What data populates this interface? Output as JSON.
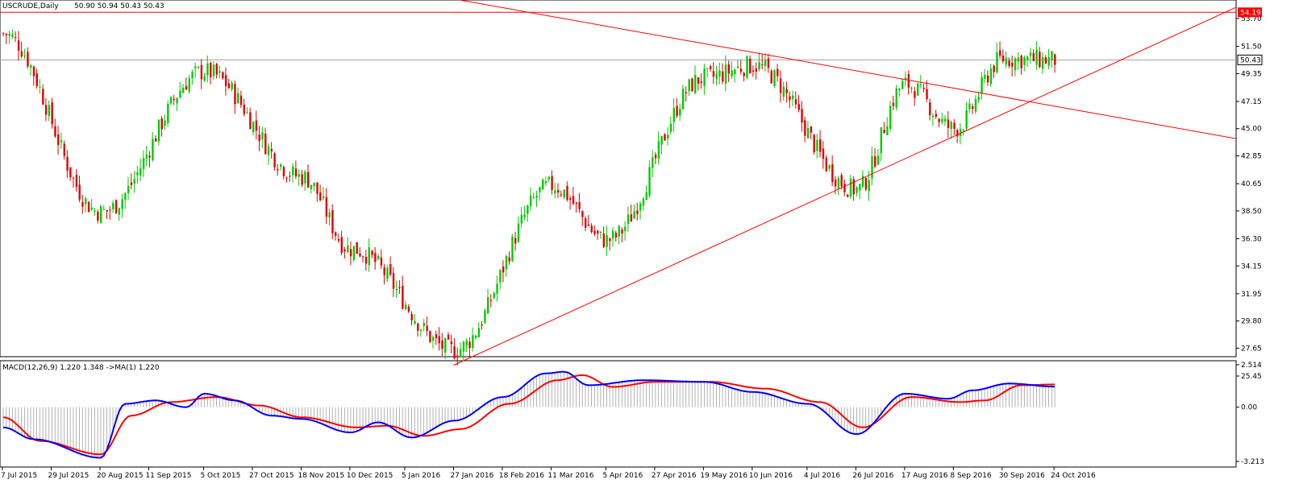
{
  "chart_data": {
    "type": "candlestick",
    "header": {
      "symbol": "USCRUDE,Daily",
      "ohlc": "50.90 50.94 50.43 50.43"
    },
    "price_axis": {
      "ylim": [
        25.45,
        54.99
      ],
      "ticks": [
        "53.70",
        "51.50",
        "49.35",
        "47.15",
        "45.00",
        "42.85",
        "40.65",
        "38.50",
        "36.30",
        "34.15",
        "31.95",
        "29.80",
        "27.65",
        "25.45"
      ],
      "tick_values": [
        53.7,
        51.5,
        49.35,
        47.15,
        45.0,
        42.85,
        40.65,
        38.5,
        36.3,
        34.15,
        31.95,
        29.8,
        27.65,
        25.45
      ],
      "resistance_label": "54.19",
      "resistance_value": 54.19,
      "last_price_label": "50.43",
      "last_price_value": 50.43
    },
    "time_axis": {
      "labels": [
        "7 Jul 2015",
        "29 Jul 2015",
        "20 Aug 2015",
        "11 Sep 2015",
        "5 Oct 2015",
        "27 Oct 2015",
        "18 Nov 2015",
        "10 Dec 2015",
        "5 Jan 2016",
        "27 Jan 2016",
        "18 Feb 2016",
        "11 Mar 2016",
        "5 Apr 2016",
        "27 Apr 2016",
        "19 May 2016",
        "10 Jun 2016",
        "4 Jul 2016",
        "26 Jul 2016",
        "17 Aug 2016",
        "8 Sep 2016",
        "30 Sep 2016",
        "24 Oct 2016"
      ],
      "bar_index": [
        0,
        16,
        32,
        48,
        66,
        82,
        98,
        114,
        132,
        148,
        164,
        180,
        198,
        214,
        230,
        246,
        264,
        280,
        296,
        312,
        328,
        345
      ]
    },
    "key_points": [
      {
        "date": "7 Jul 2015",
        "bar": 0,
        "close": 52.5
      },
      {
        "date": "20 Aug 2015",
        "bar": 32,
        "close": 38.4
      },
      {
        "date": "5 Oct 2015",
        "bar": 66,
        "close": 49.5
      },
      {
        "date": "18 Nov 2015",
        "bar": 98,
        "close": 41.2
      },
      {
        "date": "10 Dec 2015",
        "bar": 114,
        "close": 35.5
      },
      {
        "date": "27 Jan 2016",
        "bar": 148,
        "close": 27.5
      },
      {
        "date": "11 Mar 2016",
        "bar": 180,
        "close": 40.5
      },
      {
        "date": "5 Apr 2016",
        "bar": 198,
        "close": 36.2
      },
      {
        "date": "19 May 2016",
        "bar": 230,
        "close": 49.0
      },
      {
        "date": "10 Jun 2016",
        "bar": 246,
        "close": 50.0
      },
      {
        "date": "26 Jul 2016",
        "bar": 280,
        "close": 40.2
      },
      {
        "date": "17 Aug 2016",
        "bar": 296,
        "close": 48.5
      },
      {
        "date": "8 Sep 2016",
        "bar": 312,
        "close": 45.0
      },
      {
        "date": "30 Sep 2016",
        "bar": 328,
        "close": 50.5
      },
      {
        "date": "24 Oct 2016",
        "bar": 345,
        "close": 50.43
      }
    ],
    "trendlines": [
      {
        "from": {
          "bar": 148,
          "price": 26.3
        },
        "to": {
          "bar": 266,
          "price": 39.3
        }
      },
      {
        "from": {
          "bar": 231,
          "price": 52.0
        },
        "to": {
          "bar": 318,
          "price": 48.1
        }
      }
    ],
    "macd": {
      "label": "MACD(12,26,9) 1.220 1.348 ->MA(1) 1.220",
      "ylim": [
        -3.213,
        2.514
      ],
      "ticks": [
        "2.514",
        "0.00",
        "-3.213"
      ],
      "tick_values": [
        2.514,
        0,
        -3.213
      ],
      "main_key_points": [
        {
          "bar": 0,
          "value": -1.2
        },
        {
          "bar": 10,
          "value": -1.9
        },
        {
          "bar": 32,
          "value": -3.0
        },
        {
          "bar": 40,
          "value": 0.2
        },
        {
          "bar": 50,
          "value": 0.4
        },
        {
          "bar": 60,
          "value": 0.0
        },
        {
          "bar": 66,
          "value": 0.8
        },
        {
          "bar": 76,
          "value": 0.4
        },
        {
          "bar": 88,
          "value": -0.5
        },
        {
          "bar": 98,
          "value": -0.7
        },
        {
          "bar": 114,
          "value": -1.5
        },
        {
          "bar": 123,
          "value": -0.9
        },
        {
          "bar": 134,
          "value": -1.8
        },
        {
          "bar": 148,
          "value": -0.8
        },
        {
          "bar": 164,
          "value": 0.6
        },
        {
          "bar": 178,
          "value": 2.0
        },
        {
          "bar": 184,
          "value": 2.1
        },
        {
          "bar": 192,
          "value": 1.3
        },
        {
          "bar": 210,
          "value": 1.6
        },
        {
          "bar": 230,
          "value": 1.5
        },
        {
          "bar": 246,
          "value": 0.9
        },
        {
          "bar": 264,
          "value": 0.2
        },
        {
          "bar": 280,
          "value": -1.6
        },
        {
          "bar": 296,
          "value": 0.8
        },
        {
          "bar": 310,
          "value": 0.5
        },
        {
          "bar": 318,
          "value": 1.0
        },
        {
          "bar": 330,
          "value": 1.4
        },
        {
          "bar": 345,
          "value": 1.22
        }
      ],
      "signal_key_points": [
        {
          "bar": 0,
          "value": -0.6
        },
        {
          "bar": 12,
          "value": -2.0
        },
        {
          "bar": 32,
          "value": -2.8
        },
        {
          "bar": 42,
          "value": -0.5
        },
        {
          "bar": 55,
          "value": 0.3
        },
        {
          "bar": 70,
          "value": 0.6
        },
        {
          "bar": 84,
          "value": 0.1
        },
        {
          "bar": 98,
          "value": -0.6
        },
        {
          "bar": 116,
          "value": -1.2
        },
        {
          "bar": 126,
          "value": -1.1
        },
        {
          "bar": 138,
          "value": -1.7
        },
        {
          "bar": 150,
          "value": -1.3
        },
        {
          "bar": 166,
          "value": 0.2
        },
        {
          "bar": 182,
          "value": 1.6
        },
        {
          "bar": 190,
          "value": 1.9
        },
        {
          "bar": 200,
          "value": 1.2
        },
        {
          "bar": 214,
          "value": 1.5
        },
        {
          "bar": 232,
          "value": 1.5
        },
        {
          "bar": 250,
          "value": 1.1
        },
        {
          "bar": 268,
          "value": 0.3
        },
        {
          "bar": 282,
          "value": -1.2
        },
        {
          "bar": 298,
          "value": 0.6
        },
        {
          "bar": 314,
          "value": 0.3
        },
        {
          "bar": 322,
          "value": 0.4
        },
        {
          "bar": 334,
          "value": 1.3
        },
        {
          "bar": 345,
          "value": 1.348
        }
      ]
    },
    "colors": {
      "up": "#00cc00",
      "down": "#e00000",
      "trendline": "#ff0000",
      "macd_main": "#0000ff",
      "macd_signal": "#ff0000",
      "histogram": "#a0a0a0",
      "frame": "#000000",
      "last_price_label_bg": "#ffffff",
      "resistance_label_bg": "#ff0000"
    }
  }
}
